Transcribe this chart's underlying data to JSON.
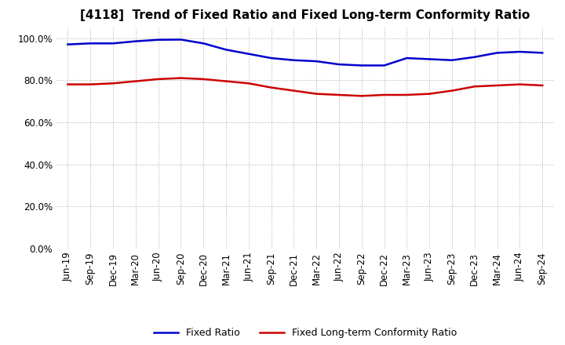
{
  "title": "[4118]  Trend of Fixed Ratio and Fixed Long-term Conformity Ratio",
  "x_labels": [
    "Jun-19",
    "Sep-19",
    "Dec-19",
    "Mar-20",
    "Jun-20",
    "Sep-20",
    "Dec-20",
    "Mar-21",
    "Jun-21",
    "Sep-21",
    "Dec-21",
    "Mar-22",
    "Jun-22",
    "Sep-22",
    "Dec-22",
    "Mar-23",
    "Jun-23",
    "Sep-23",
    "Dec-23",
    "Mar-24",
    "Jun-24",
    "Sep-24"
  ],
  "fixed_ratio": [
    97.0,
    97.5,
    97.5,
    98.5,
    99.2,
    99.3,
    97.5,
    94.5,
    92.5,
    90.5,
    89.5,
    89.0,
    87.5,
    87.0,
    87.0,
    90.5,
    90.0,
    89.5,
    91.0,
    93.0,
    93.5,
    93.0
  ],
  "fixed_lt_ratio": [
    78.0,
    78.0,
    78.5,
    79.5,
    80.5,
    81.0,
    80.5,
    79.5,
    78.5,
    76.5,
    75.0,
    73.5,
    73.0,
    72.5,
    73.0,
    73.0,
    73.5,
    75.0,
    77.0,
    77.5,
    78.0,
    77.5
  ],
  "fixed_ratio_color": "#0000cc",
  "fixed_lt_ratio_color": "#cc0000",
  "grid_color": "#aaaaaa",
  "background_color": "#ffffff",
  "ylim": [
    0,
    105
  ],
  "yticks": [
    0,
    20,
    40,
    60,
    80,
    100
  ],
  "ytick_labels": [
    "0.0%",
    "20.0%",
    "40.0%",
    "60.0%",
    "80.0%",
    "100.0%"
  ],
  "legend_fixed_ratio": "Fixed Ratio",
  "legend_fixed_lt_ratio": "Fixed Long-term Conformity Ratio",
  "title_fontsize": 11,
  "tick_fontsize": 8.5,
  "legend_fontsize": 9
}
